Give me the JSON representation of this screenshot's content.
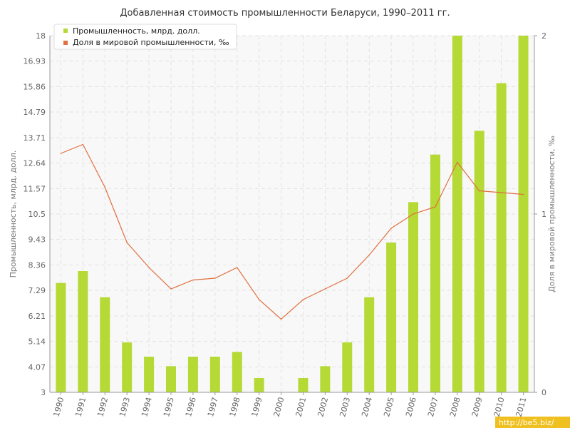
{
  "chart_data": {
    "type": "bar",
    "title": "Добавленная стоимость промышленности Беларуси, 1990–2011 гг.",
    "ylabel_left": "Промышленность, млрд. долл.",
    "ylabel_right": "Доля в мировой промышленности, ‰",
    "categories": [
      "1990",
      "1991",
      "1992",
      "1993",
      "1994",
      "1995",
      "1996",
      "1997",
      "1998",
      "1999",
      "2000",
      "2001",
      "2002",
      "2003",
      "2004",
      "2005",
      "2006",
      "2007",
      "2008",
      "2009",
      "2010",
      "2011"
    ],
    "ylim_left": [
      3,
      18
    ],
    "yticks_left": [
      "3",
      "4.07",
      "5.14",
      "6.21",
      "7.29",
      "8.36",
      "9.43",
      "10.5",
      "11.57",
      "12.64",
      "13.71",
      "14.79",
      "15.86",
      "16.93",
      "18"
    ],
    "ylim_right": [
      0,
      2
    ],
    "yticks_right": [
      "0",
      "1",
      "2"
    ],
    "grid": true,
    "legend_position": "top-left",
    "series": [
      {
        "name": "Промышленность, млрд. долл.",
        "type": "bar",
        "axis": "left",
        "color": "#b5d935",
        "values": [
          7.6,
          8.1,
          7.0,
          5.1,
          4.5,
          4.1,
          4.5,
          4.5,
          4.7,
          3.6,
          2.9,
          3.6,
          4.1,
          5.1,
          7.0,
          9.3,
          11.0,
          13.0,
          18.0,
          14.0,
          16.0,
          18.0
        ]
      },
      {
        "name": "Доля в мировой промышленности, ‰",
        "type": "line",
        "axis": "right",
        "color": "#e07040",
        "values": [
          1.34,
          1.39,
          1.15,
          0.84,
          0.7,
          0.58,
          0.63,
          0.64,
          0.7,
          0.52,
          0.41,
          0.52,
          0.58,
          0.64,
          0.77,
          0.92,
          1.0,
          1.04,
          1.29,
          1.13,
          1.12,
          1.11
        ]
      }
    ]
  },
  "watermark": "http://be5.biz/"
}
